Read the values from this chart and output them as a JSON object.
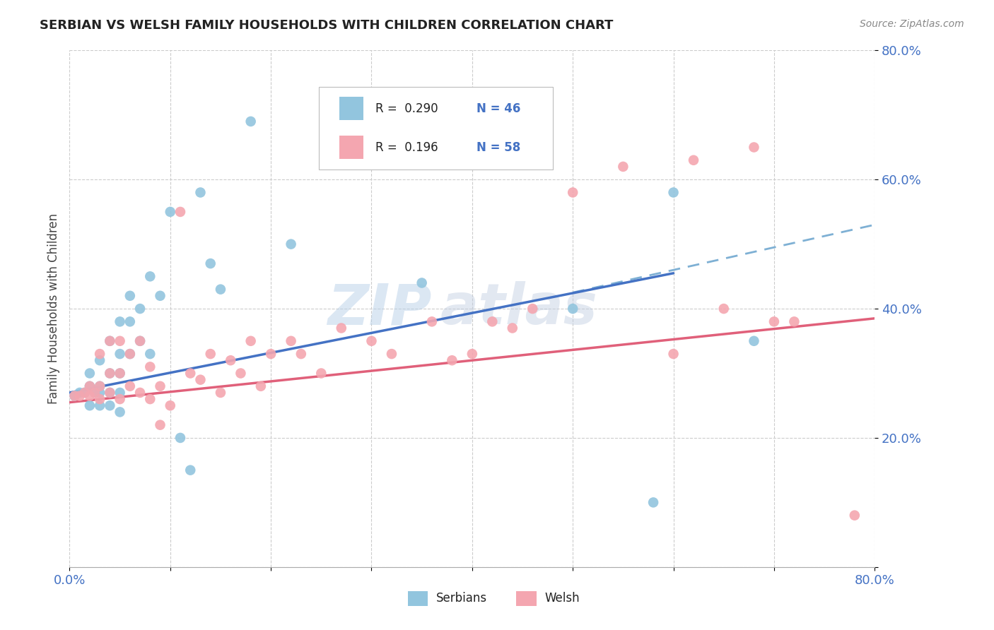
{
  "title": "SERBIAN VS WELSH FAMILY HOUSEHOLDS WITH CHILDREN CORRELATION CHART",
  "source_text": "Source: ZipAtlas.com",
  "ylabel": "Family Households with Children",
  "xlabel": "",
  "xlim": [
    0.0,
    0.8
  ],
  "ylim": [
    0.0,
    0.8
  ],
  "xticks": [
    0.0,
    0.1,
    0.2,
    0.3,
    0.4,
    0.5,
    0.6,
    0.7,
    0.8
  ],
  "xtick_labels": [
    "0.0%",
    "",
    "",
    "",
    "",
    "",
    "",
    "",
    "80.0%"
  ],
  "yticks": [
    0.0,
    0.2,
    0.4,
    0.6,
    0.8
  ],
  "ytick_labels": [
    "",
    "20.0%",
    "40.0%",
    "60.0%",
    "80.0%"
  ],
  "watermark": "ZIPAtlas",
  "legend_r1": "R =  0.290",
  "legend_n1": "N = 46",
  "legend_r2": "R =  0.196",
  "legend_n2": "N = 58",
  "serbian_color": "#92c5de",
  "welsh_color": "#f4a6b0",
  "serbian_line_color": "#4472c4",
  "welsh_line_color": "#e0607a",
  "dashed_line_color": "#7eb0d4",
  "background_color": "#ffffff",
  "serbians_x": [
    0.005,
    0.01,
    0.015,
    0.02,
    0.02,
    0.02,
    0.025,
    0.03,
    0.03,
    0.03,
    0.03,
    0.04,
    0.04,
    0.04,
    0.04,
    0.05,
    0.05,
    0.05,
    0.05,
    0.05,
    0.06,
    0.06,
    0.06,
    0.07,
    0.07,
    0.08,
    0.08,
    0.09,
    0.1,
    0.11,
    0.12,
    0.13,
    0.14,
    0.15,
    0.18,
    0.22,
    0.35,
    0.5,
    0.58,
    0.6,
    0.68
  ],
  "serbians_y": [
    0.265,
    0.27,
    0.27,
    0.25,
    0.28,
    0.3,
    0.27,
    0.25,
    0.27,
    0.28,
    0.32,
    0.25,
    0.27,
    0.3,
    0.35,
    0.24,
    0.27,
    0.3,
    0.33,
    0.38,
    0.33,
    0.38,
    0.42,
    0.35,
    0.4,
    0.33,
    0.45,
    0.42,
    0.55,
    0.2,
    0.15,
    0.58,
    0.47,
    0.43,
    0.69,
    0.5,
    0.44,
    0.4,
    0.1,
    0.58,
    0.35
  ],
  "welsh_x": [
    0.005,
    0.01,
    0.015,
    0.02,
    0.02,
    0.025,
    0.03,
    0.03,
    0.03,
    0.04,
    0.04,
    0.04,
    0.05,
    0.05,
    0.05,
    0.06,
    0.06,
    0.07,
    0.07,
    0.08,
    0.08,
    0.09,
    0.09,
    0.1,
    0.11,
    0.12,
    0.13,
    0.14,
    0.15,
    0.16,
    0.17,
    0.18,
    0.19,
    0.2,
    0.22,
    0.23,
    0.25,
    0.27,
    0.3,
    0.32,
    0.36,
    0.38,
    0.4,
    0.42,
    0.44,
    0.46,
    0.5,
    0.55,
    0.6,
    0.62,
    0.65,
    0.68,
    0.7,
    0.72,
    0.78
  ],
  "welsh_y": [
    0.265,
    0.265,
    0.27,
    0.265,
    0.28,
    0.27,
    0.26,
    0.28,
    0.33,
    0.27,
    0.3,
    0.35,
    0.26,
    0.3,
    0.35,
    0.28,
    0.33,
    0.27,
    0.35,
    0.26,
    0.31,
    0.22,
    0.28,
    0.25,
    0.55,
    0.3,
    0.29,
    0.33,
    0.27,
    0.32,
    0.3,
    0.35,
    0.28,
    0.33,
    0.35,
    0.33,
    0.3,
    0.37,
    0.35,
    0.33,
    0.38,
    0.32,
    0.33,
    0.38,
    0.37,
    0.4,
    0.58,
    0.62,
    0.33,
    0.63,
    0.4,
    0.65,
    0.38,
    0.38,
    0.08
  ],
  "serbian_line_x0": 0.0,
  "serbian_line_y0": 0.27,
  "serbian_line_x1": 0.6,
  "serbian_line_y1": 0.455,
  "dashed_line_x0": 0.5,
  "dashed_line_y0": 0.425,
  "dashed_line_x1": 0.8,
  "dashed_line_y1": 0.53,
  "welsh_line_x0": 0.0,
  "welsh_line_y0": 0.255,
  "welsh_line_x1": 0.8,
  "welsh_line_y1": 0.385
}
